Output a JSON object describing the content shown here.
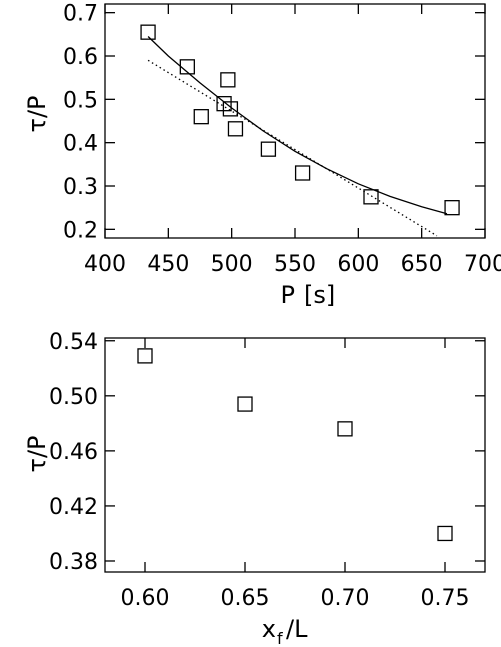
{
  "chart_data": [
    {
      "type": "scatter",
      "xlabel_main": "P",
      "xlabel_unit": "[s]",
      "ylabel": "τ/P",
      "xlim": [
        400,
        700
      ],
      "ylim": [
        0.18,
        0.72
      ],
      "xticks": [
        400,
        450,
        500,
        550,
        600,
        650,
        700
      ],
      "yticks": [
        0.2,
        0.3,
        0.4,
        0.5,
        0.6,
        0.7
      ],
      "xtick_labels": [
        "400",
        "450",
        "500",
        "550",
        "600",
        "650",
        "700"
      ],
      "ytick_labels": [
        "0.2",
        "0.3",
        "0.4",
        "0.5",
        "0.6",
        "0.7"
      ],
      "points": [
        {
          "x": 434,
          "y": 0.655
        },
        {
          "x": 465,
          "y": 0.575
        },
        {
          "x": 497,
          "y": 0.545
        },
        {
          "x": 494,
          "y": 0.49
        },
        {
          "x": 499,
          "y": 0.478
        },
        {
          "x": 476,
          "y": 0.46
        },
        {
          "x": 503,
          "y": 0.432
        },
        {
          "x": 529,
          "y": 0.385
        },
        {
          "x": 556,
          "y": 0.33
        },
        {
          "x": 610,
          "y": 0.275
        },
        {
          "x": 674,
          "y": 0.25
        }
      ],
      "fit_solid": {
        "x": [
          434,
          450,
          475,
          500,
          525,
          550,
          575,
          600,
          625,
          650,
          670
        ],
        "y": [
          0.645,
          0.6,
          0.538,
          0.48,
          0.427,
          0.38,
          0.34,
          0.305,
          0.276,
          0.252,
          0.236
        ]
      },
      "fit_dotted": {
        "x": [
          434,
          662
        ],
        "y": [
          0.59,
          0.185
        ]
      }
    },
    {
      "type": "scatter",
      "xlabel_main": "x",
      "xlabel_sub": "f",
      "xlabel_rest": "/L",
      "ylabel": "τ/P",
      "xlim": [
        0.58,
        0.77
      ],
      "ylim": [
        0.372,
        0.542
      ],
      "xticks": [
        0.6,
        0.65,
        0.7,
        0.75
      ],
      "yticks": [
        0.38,
        0.42,
        0.46,
        0.5,
        0.54
      ],
      "xtick_labels": [
        "0.60",
        "0.65",
        "0.70",
        "0.75"
      ],
      "ytick_labels": [
        "0.38",
        "0.42",
        "0.46",
        "0.50",
        "0.54"
      ],
      "points": [
        {
          "x": 0.6,
          "y": 0.529
        },
        {
          "x": 0.65,
          "y": 0.494
        },
        {
          "x": 0.7,
          "y": 0.476
        },
        {
          "x": 0.75,
          "y": 0.4
        }
      ]
    }
  ]
}
